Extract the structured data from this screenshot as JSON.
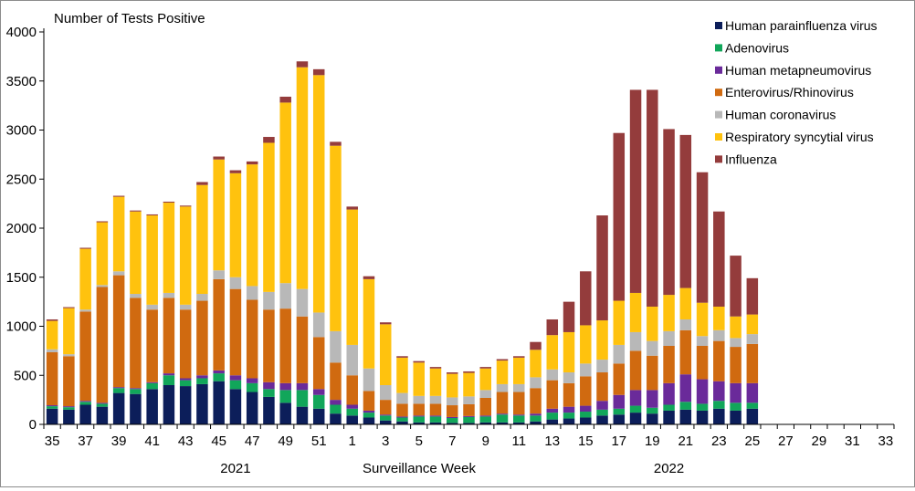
{
  "chart_data": {
    "type": "bar",
    "stacked": true,
    "ylabel": "Number of Tests Positive",
    "xlabel": "Surveillance Week",
    "ylim": [
      0,
      4000
    ],
    "yticks": [
      0,
      500,
      1000,
      1500,
      2000,
      2500,
      3000,
      3500,
      4000
    ],
    "grid": false,
    "legend_position": "top-right",
    "year_labels": [
      {
        "label": "2021",
        "at_week_index": 11
      },
      {
        "label": "2022",
        "at_week_index": 37
      }
    ],
    "categories": [
      "35",
      "36",
      "37",
      "38",
      "39",
      "40",
      "41",
      "42",
      "43",
      "44",
      "45",
      "46",
      "47",
      "48",
      "49",
      "50",
      "51",
      "52",
      "1",
      "2",
      "3",
      "4",
      "5",
      "6",
      "7",
      "8",
      "9",
      "10",
      "11",
      "12",
      "13",
      "14",
      "15",
      "16",
      "17",
      "18",
      "19",
      "20",
      "21",
      "22",
      "23",
      "24",
      "25",
      "26",
      "27",
      "28",
      "29",
      "30",
      "31",
      "32",
      "33"
    ],
    "series": [
      {
        "name": "Human parainfluenza virus",
        "color": "#0c1e5a",
        "values": [
          160,
          150,
          200,
          180,
          320,
          310,
          360,
          400,
          390,
          410,
          440,
          360,
          330,
          280,
          220,
          180,
          160,
          110,
          90,
          70,
          40,
          30,
          20,
          20,
          15,
          15,
          20,
          20,
          20,
          30,
          50,
          60,
          70,
          90,
          100,
          120,
          110,
          140,
          150,
          140,
          160,
          140,
          160,
          null,
          null,
          null,
          null,
          null,
          null,
          null,
          null
        ]
      },
      {
        "name": "Adenovirus",
        "color": "#11a65a",
        "values": [
          25,
          25,
          30,
          30,
          50,
          50,
          60,
          100,
          60,
          60,
          80,
          90,
          90,
          80,
          130,
          170,
          140,
          90,
          70,
          50,
          50,
          40,
          60,
          60,
          50,
          60,
          60,
          80,
          70,
          60,
          70,
          60,
          60,
          60,
          60,
          70,
          60,
          60,
          80,
          70,
          80,
          80,
          60,
          null,
          null,
          null,
          null,
          null,
          null,
          null,
          null
        ]
      },
      {
        "name": "Human metapneumovirus",
        "color": "#6a2a9a",
        "values": [
          10,
          10,
          10,
          10,
          10,
          10,
          10,
          20,
          20,
          30,
          30,
          50,
          50,
          70,
          70,
          70,
          60,
          50,
          40,
          20,
          10,
          10,
          10,
          10,
          10,
          10,
          10,
          10,
          10,
          20,
          40,
          60,
          60,
          90,
          140,
          160,
          180,
          220,
          280,
          250,
          200,
          200,
          200,
          null,
          null,
          null,
          null,
          null,
          null,
          null,
          null
        ]
      },
      {
        "name": "Enterovirus/Rhinovirus",
        "color": "#d06a10",
        "values": [
          540,
          510,
          910,
          1180,
          1140,
          920,
          740,
          770,
          700,
          760,
          930,
          880,
          800,
          740,
          760,
          680,
          530,
          380,
          300,
          200,
          150,
          130,
          120,
          120,
          120,
          120,
          180,
          220,
          230,
          260,
          290,
          240,
          300,
          290,
          320,
          400,
          350,
          380,
          450,
          340,
          410,
          370,
          400,
          null,
          null,
          null,
          null,
          null,
          null,
          null,
          null
        ]
      },
      {
        "name": "Human coronavirus",
        "color": "#b8b8b8",
        "values": [
          30,
          20,
          20,
          20,
          40,
          40,
          50,
          50,
          50,
          70,
          90,
          120,
          140,
          180,
          260,
          280,
          250,
          320,
          310,
          230,
          150,
          110,
          80,
          80,
          80,
          80,
          80,
          80,
          80,
          110,
          110,
          110,
          130,
          130,
          190,
          190,
          150,
          150,
          110,
          100,
          110,
          90,
          100,
          null,
          null,
          null,
          null,
          null,
          null,
          null,
          null
        ]
      },
      {
        "name": "Respiratory syncytial virus",
        "color": "#ffc20e",
        "values": [
          290,
          470,
          620,
          640,
          760,
          840,
          910,
          920,
          1000,
          1110,
          1130,
          1060,
          1240,
          1520,
          1840,
          2260,
          2420,
          1890,
          1380,
          910,
          620,
          360,
          340,
          280,
          240,
          240,
          220,
          240,
          270,
          280,
          350,
          410,
          390,
          400,
          450,
          400,
          350,
          370,
          320,
          340,
          240,
          220,
          200,
          null,
          null,
          null,
          null,
          null,
          null,
          null,
          null
        ]
      },
      {
        "name": "Influenza",
        "color": "#943c3c",
        "values": [
          15,
          10,
          10,
          10,
          10,
          10,
          10,
          10,
          10,
          30,
          30,
          30,
          30,
          60,
          60,
          60,
          60,
          40,
          30,
          30,
          20,
          15,
          15,
          15,
          15,
          15,
          15,
          15,
          15,
          80,
          160,
          310,
          550,
          1070,
          1710,
          2070,
          2210,
          1690,
          1560,
          1330,
          970,
          620,
          370,
          null,
          null,
          null,
          null,
          null,
          null,
          null,
          null
        ]
      }
    ]
  }
}
